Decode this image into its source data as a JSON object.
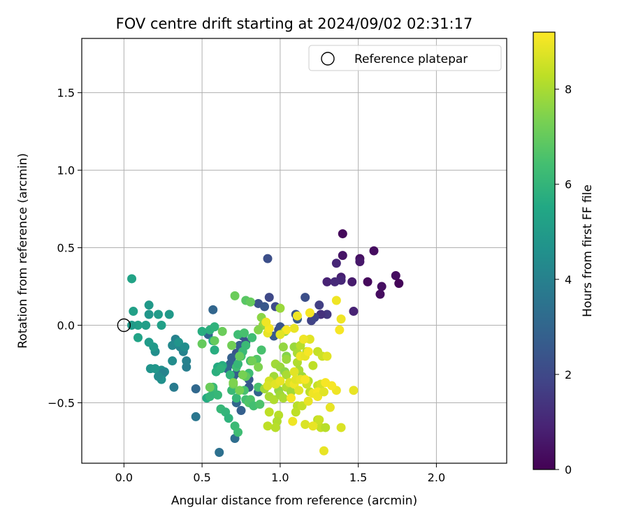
{
  "chart_data": {
    "type": "scatter",
    "title": "FOV centre drift starting at 2024/09/02 02:31:17",
    "xlabel": "Angular distance from reference (arcmin)",
    "ylabel": "Rotation from reference (arcmin)",
    "xlim": [
      -0.27,
      2.45
    ],
    "ylim": [
      -0.89,
      1.85
    ],
    "xticks": [
      0.0,
      0.5,
      1.0,
      1.5,
      2.0
    ],
    "xtick_labels": [
      "0.0",
      "0.5",
      "1.0",
      "1.5",
      "2.0"
    ],
    "yticks": [
      -0.5,
      0.0,
      0.5,
      1.0,
      1.5
    ],
    "ytick_labels": [
      "−0.5",
      "0.0",
      "0.5",
      "1.0",
      "1.5"
    ],
    "grid": true,
    "legend": {
      "position": "top-right",
      "label": "Reference platepar"
    },
    "reference_point": {
      "x": 0.0,
      "y": 0.0
    },
    "colorbar": {
      "label": "Hours from first FF file",
      "min": 0,
      "max": 9.2,
      "ticks": [
        0,
        2,
        4,
        6,
        8
      ],
      "tick_labels": [
        "0",
        "2",
        "4",
        "6",
        "8"
      ],
      "colormap": "viridis"
    },
    "points": [
      [
        1.4,
        0.59,
        0.2
      ],
      [
        1.6,
        0.48,
        0.3
      ],
      [
        1.4,
        0.45,
        0.5
      ],
      [
        1.51,
        0.43,
        0.4
      ],
      [
        1.51,
        0.41,
        0.6
      ],
      [
        1.74,
        0.32,
        0.3
      ],
      [
        1.76,
        0.27,
        0.1
      ],
      [
        1.65,
        0.25,
        0.4
      ],
      [
        1.64,
        0.2,
        0.3
      ],
      [
        1.56,
        0.28,
        0.2
      ],
      [
        1.39,
        0.31,
        0.8
      ],
      [
        1.39,
        0.29,
        1.0
      ],
      [
        1.3,
        0.28,
        0.9
      ],
      [
        1.36,
        0.4,
        1.0
      ],
      [
        1.46,
        0.28,
        0.7
      ],
      [
        1.47,
        0.09,
        0.9
      ],
      [
        1.35,
        0.28,
        1.1
      ],
      [
        1.25,
        0.13,
        1.7
      ],
      [
        1.3,
        0.07,
        1.5
      ],
      [
        1.26,
        0.07,
        1.3
      ],
      [
        1.2,
        0.03,
        1.8
      ],
      [
        1.22,
        0.05,
        1.9
      ],
      [
        0.92,
        0.43,
        2.2
      ],
      [
        0.93,
        0.18,
        2.0
      ],
      [
        0.86,
        0.14,
        2.3
      ],
      [
        0.9,
        0.12,
        2.5
      ],
      [
        0.97,
        0.12,
        2.1
      ],
      [
        1.16,
        0.18,
        2.2
      ],
      [
        1.1,
        0.07,
        2.4
      ],
      [
        1.11,
        0.04,
        2.6
      ],
      [
        1.02,
        -0.03,
        2.0
      ],
      [
        0.99,
        -0.03,
        2.2
      ],
      [
        1.0,
        -0.01,
        2.4
      ],
      [
        0.96,
        -0.07,
        2.6
      ],
      [
        0.76,
        -0.07,
        2.5
      ],
      [
        0.78,
        -0.11,
        2.3
      ],
      [
        0.74,
        -0.13,
        2.7
      ],
      [
        0.72,
        -0.18,
        2.4
      ],
      [
        0.69,
        -0.21,
        2.8
      ],
      [
        0.68,
        -0.25,
        2.9
      ],
      [
        0.66,
        -0.28,
        3.0
      ],
      [
        0.7,
        -0.33,
        3.1
      ],
      [
        0.72,
        -0.31,
        2.7
      ],
      [
        0.8,
        -0.35,
        2.6
      ],
      [
        0.86,
        -0.43,
        2.9
      ],
      [
        0.8,
        -0.4,
        2.5
      ],
      [
        0.75,
        -0.55,
        2.8
      ],
      [
        0.72,
        -0.5,
        3.0
      ],
      [
        0.54,
        -0.06,
        2.9
      ],
      [
        0.57,
        0.1,
        3.0
      ],
      [
        0.46,
        -0.41,
        3.1
      ],
      [
        0.71,
        -0.73,
        3.3
      ],
      [
        0.61,
        -0.82,
        3.4
      ],
      [
        0.46,
        -0.59,
        3.6
      ],
      [
        0.32,
        -0.4,
        3.8
      ],
      [
        0.4,
        -0.27,
        3.9
      ],
      [
        0.4,
        -0.23,
        4.0
      ],
      [
        0.38,
        -0.17,
        4.1
      ],
      [
        0.36,
        -0.14,
        4.2
      ],
      [
        0.33,
        -0.09,
        4.0
      ],
      [
        0.31,
        -0.13,
        4.3
      ],
      [
        0.31,
        -0.23,
        4.4
      ],
      [
        0.26,
        -0.3,
        4.3
      ],
      [
        0.24,
        -0.29,
        4.5
      ],
      [
        0.25,
        -0.31,
        4.1
      ],
      [
        0.24,
        -0.35,
        4.6
      ],
      [
        0.22,
        -0.33,
        4.4
      ],
      [
        0.17,
        -0.28,
        4.7
      ],
      [
        0.2,
        -0.28,
        4.8
      ],
      [
        0.2,
        -0.17,
        4.5
      ],
      [
        0.19,
        -0.14,
        4.9
      ],
      [
        0.16,
        -0.11,
        5.0
      ],
      [
        0.14,
        0.0,
        5.1
      ],
      [
        0.16,
        0.07,
        4.8
      ],
      [
        0.16,
        0.13,
        4.9
      ],
      [
        0.22,
        0.07,
        5.0
      ],
      [
        0.24,
        0.0,
        5.2
      ],
      [
        0.29,
        0.07,
        4.9
      ],
      [
        0.09,
        0.0,
        5.2
      ],
      [
        0.09,
        -0.08,
        5.3
      ],
      [
        0.06,
        0.09,
        5.2
      ],
      [
        0.05,
        0.0,
        5.0
      ],
      [
        0.05,
        0.3,
        5.3
      ],
      [
        0.35,
        -0.11,
        4.7
      ],
      [
        0.39,
        -0.14,
        4.5
      ],
      [
        0.5,
        -0.04,
        5.7
      ],
      [
        0.53,
        -0.47,
        5.6
      ],
      [
        0.55,
        -0.03,
        5.8
      ],
      [
        0.58,
        -0.01,
        5.9
      ],
      [
        0.57,
        -0.1,
        5.5
      ],
      [
        0.58,
        -0.16,
        5.7
      ],
      [
        0.6,
        -0.27,
        5.6
      ],
      [
        0.59,
        -0.3,
        5.8
      ],
      [
        0.63,
        -0.26,
        5.7
      ],
      [
        0.62,
        -0.28,
        5.9
      ],
      [
        0.57,
        -0.42,
        6.0
      ],
      [
        0.6,
        -0.45,
        6.1
      ],
      [
        0.57,
        -0.4,
        6.2
      ],
      [
        0.55,
        -0.46,
        6.0
      ],
      [
        0.62,
        -0.54,
        6.1
      ],
      [
        0.65,
        -0.56,
        6.0
      ],
      [
        0.67,
        -0.6,
        5.9
      ],
      [
        0.71,
        -0.65,
        6.2
      ],
      [
        0.73,
        -0.69,
        6.3
      ],
      [
        0.72,
        -0.47,
        6.1
      ],
      [
        0.69,
        -0.42,
        6.2
      ],
      [
        0.68,
        -0.32,
        6.0
      ],
      [
        0.72,
        -0.27,
        6.3
      ],
      [
        0.73,
        -0.25,
        6.1
      ],
      [
        0.75,
        -0.2,
        6.4
      ],
      [
        0.76,
        -0.17,
        6.2
      ],
      [
        0.73,
        -0.06,
        6.3
      ],
      [
        0.77,
        -0.05,
        6.5
      ],
      [
        0.78,
        -0.13,
        6.2
      ],
      [
        0.82,
        -0.08,
        6.3
      ],
      [
        0.81,
        -0.23,
        6.4
      ],
      [
        0.8,
        -0.31,
        6.3
      ],
      [
        0.77,
        -0.42,
        6.5
      ],
      [
        0.78,
        -0.48,
        6.4
      ],
      [
        0.8,
        -0.5,
        6.7
      ],
      [
        0.81,
        -0.48,
        6.6
      ],
      [
        0.83,
        -0.52,
        6.4
      ],
      [
        0.86,
        -0.4,
        6.5
      ],
      [
        0.87,
        -0.51,
        6.6
      ],
      [
        0.88,
        -0.16,
        6.5
      ],
      [
        0.85,
        -0.22,
        6.7
      ],
      [
        0.78,
        0.16,
        6.8
      ],
      [
        0.81,
        0.15,
        7.0
      ],
      [
        0.71,
        0.19,
        7.1
      ],
      [
        0.78,
        -0.33,
        6.9
      ],
      [
        0.5,
        -0.12,
        7.0
      ],
      [
        0.55,
        -0.4,
        7.1
      ],
      [
        0.63,
        -0.04,
        7.1
      ],
      [
        0.58,
        -0.1,
        7.0
      ],
      [
        0.69,
        -0.13,
        7.2
      ],
      [
        0.74,
        -0.2,
        7.0
      ],
      [
        0.76,
        -0.32,
        7.3
      ],
      [
        0.7,
        -0.38,
        7.2
      ],
      [
        0.74,
        -0.42,
        7.3
      ],
      [
        0.7,
        -0.37,
        7.4
      ],
      [
        0.82,
        -0.23,
        7.2
      ],
      [
        0.86,
        -0.27,
        7.4
      ],
      [
        0.88,
        0.05,
        7.6
      ],
      [
        0.89,
        0.0,
        7.7
      ],
      [
        0.86,
        -0.03,
        7.5
      ],
      [
        1.0,
        0.11,
        7.8
      ],
      [
        1.03,
        -0.04,
        7.6
      ],
      [
        1.02,
        -0.14,
        7.7
      ],
      [
        1.04,
        -0.2,
        7.5
      ],
      [
        1.04,
        -0.22,
        7.8
      ],
      [
        0.97,
        -0.25,
        7.9
      ],
      [
        1.0,
        -0.27,
        7.8
      ],
      [
        1.03,
        -0.3,
        7.6
      ],
      [
        0.96,
        -0.33,
        7.9
      ],
      [
        1.04,
        -0.32,
        8.0
      ],
      [
        0.9,
        -0.41,
        7.9
      ],
      [
        0.93,
        -0.46,
        8.0
      ],
      [
        0.99,
        -0.42,
        7.7
      ],
      [
        0.96,
        -0.48,
        8.1
      ],
      [
        1.0,
        -0.45,
        7.9
      ],
      [
        1.02,
        -0.47,
        8.0
      ],
      [
        1.04,
        -0.4,
        8.1
      ],
      [
        1.07,
        -0.43,
        7.9
      ],
      [
        1.09,
        -0.14,
        7.8
      ],
      [
        1.11,
        -0.18,
        8.0
      ],
      [
        1.11,
        -0.24,
        8.1
      ],
      [
        1.12,
        -0.29,
        8.0
      ],
      [
        1.14,
        -0.33,
        7.9
      ],
      [
        1.13,
        -0.13,
        8.2
      ],
      [
        1.17,
        -0.17,
        8.1
      ],
      [
        0.93,
        -0.56,
        8.3
      ],
      [
        0.99,
        -0.58,
        8.2
      ],
      [
        0.98,
        -0.62,
        8.1
      ],
      [
        0.92,
        -0.65,
        8.3
      ],
      [
        0.97,
        -0.66,
        8.2
      ],
      [
        1.11,
        -0.52,
        8.2
      ],
      [
        1.1,
        -0.56,
        8.3
      ],
      [
        1.14,
        -0.52,
        8.4
      ],
      [
        1.18,
        -0.36,
        8.2
      ],
      [
        1.19,
        -0.43,
        8.3
      ],
      [
        1.17,
        -0.38,
        8.5
      ],
      [
        1.21,
        -0.26,
        8.3
      ],
      [
        1.24,
        -0.17,
        8.4
      ],
      [
        1.24,
        -0.39,
        8.4
      ],
      [
        1.26,
        -0.38,
        8.6
      ],
      [
        1.27,
        -0.2,
        8.5
      ],
      [
        1.24,
        -0.61,
        8.3
      ],
      [
        1.26,
        -0.66,
        8.4
      ],
      [
        1.25,
        -0.61,
        8.5
      ],
      [
        1.29,
        -0.66,
        8.2
      ],
      [
        0.93,
        -0.36,
        8.6
      ],
      [
        0.92,
        -0.39,
        8.7
      ],
      [
        0.97,
        -0.38,
        8.8
      ],
      [
        1.0,
        -0.36,
        8.9
      ],
      [
        1.06,
        -0.37,
        8.7
      ],
      [
        1.09,
        -0.38,
        9.0
      ],
      [
        1.1,
        -0.35,
        8.8
      ],
      [
        1.13,
        -0.35,
        8.9
      ],
      [
        1.16,
        -0.35,
        9.1
      ],
      [
        1.09,
        -0.3,
        8.8
      ],
      [
        1.13,
        -0.2,
        9.0
      ],
      [
        1.16,
        -0.2,
        8.9
      ],
      [
        1.18,
        -0.17,
        9.1
      ],
      [
        1.19,
        -0.09,
        8.8
      ],
      [
        1.15,
        -0.09,
        9.0
      ],
      [
        1.19,
        0.08,
        9.1
      ],
      [
        1.11,
        0.06,
        9.0
      ],
      [
        1.09,
        -0.02,
        8.9
      ],
      [
        1.04,
        -0.03,
        9.1
      ],
      [
        1.0,
        -0.06,
        8.8
      ],
      [
        0.92,
        -0.05,
        8.9
      ],
      [
        0.93,
        -0.02,
        9.1
      ],
      [
        0.91,
        0.02,
        9.0
      ],
      [
        1.18,
        -0.49,
        8.9
      ],
      [
        1.21,
        -0.44,
        9.0
      ],
      [
        1.24,
        -0.43,
        9.1
      ],
      [
        1.16,
        -0.64,
        8.7
      ],
      [
        1.21,
        -0.65,
        8.9
      ],
      [
        1.08,
        -0.62,
        9.0
      ],
      [
        1.07,
        -0.47,
        9.1
      ],
      [
        1.12,
        -0.42,
        8.8
      ],
      [
        1.28,
        -0.81,
        8.9
      ],
      [
        1.29,
        -0.37,
        9.1
      ],
      [
        1.36,
        -0.42,
        9.0
      ],
      [
        1.32,
        -0.53,
        8.9
      ],
      [
        1.39,
        -0.66,
        8.7
      ],
      [
        1.3,
        -0.2,
        8.8
      ],
      [
        1.36,
        0.16,
        9.0
      ],
      [
        1.38,
        -0.03,
        9.1
      ],
      [
        1.39,
        0.04,
        9.0
      ],
      [
        1.47,
        -0.42,
        8.9
      ],
      [
        1.33,
        -0.39,
        9.1
      ],
      [
        1.24,
        -0.46,
        9.0
      ],
      [
        1.28,
        -0.43,
        8.8
      ]
    ]
  }
}
